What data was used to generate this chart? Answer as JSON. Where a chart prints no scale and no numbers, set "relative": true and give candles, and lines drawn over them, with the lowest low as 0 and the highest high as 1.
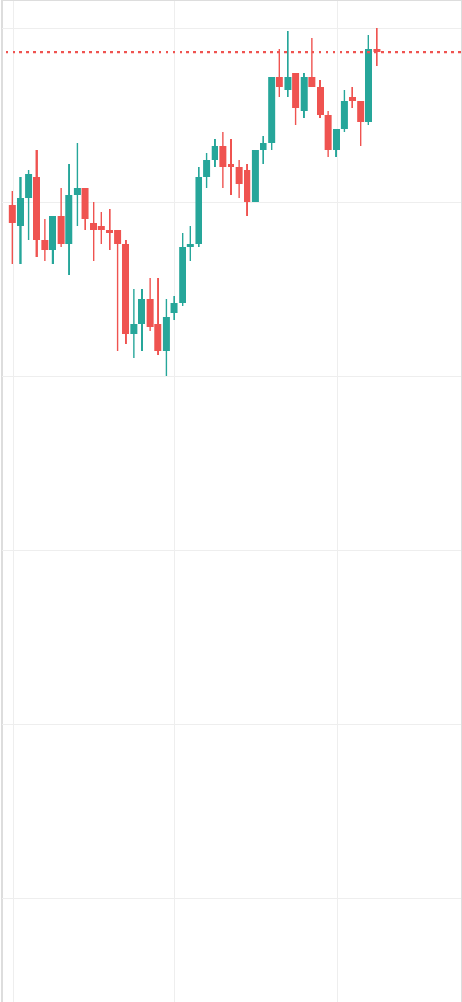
{
  "chart_data": {
    "type": "candlestick",
    "relative": true,
    "grid": true,
    "tick_labels": false,
    "categories": [
      null,
      null,
      null,
      null,
      null,
      null,
      null,
      null,
      null,
      null,
      null,
      null,
      null,
      null,
      null,
      null,
      null,
      null,
      null,
      null,
      null,
      null,
      null,
      null,
      null,
      null,
      null,
      null,
      null,
      null,
      null,
      null,
      null,
      null,
      null,
      null,
      null,
      null,
      null,
      null,
      null,
      null,
      null,
      null,
      null,
      null
    ],
    "ohlc": [
      [
        0.49,
        0.53,
        0.32,
        0.44
      ],
      [
        0.43,
        0.57,
        0.32,
        0.51
      ],
      [
        0.51,
        0.59,
        0.39,
        0.58
      ],
      [
        0.57,
        0.65,
        0.34,
        0.39
      ],
      [
        0.39,
        0.45,
        0.33,
        0.36
      ],
      [
        0.36,
        0.46,
        0.32,
        0.46
      ],
      [
        0.46,
        0.54,
        0.37,
        0.38
      ],
      [
        0.38,
        0.61,
        0.29,
        0.52
      ],
      [
        0.52,
        0.67,
        0.43,
        0.54
      ],
      [
        0.54,
        0.54,
        0.42,
        0.45
      ],
      [
        0.44,
        0.5,
        0.33,
        0.42
      ],
      [
        0.43,
        0.47,
        0.38,
        0.42
      ],
      [
        0.42,
        0.48,
        0.36,
        0.41
      ],
      [
        0.42,
        0.42,
        0.07,
        0.38
      ],
      [
        0.38,
        0.39,
        0.09,
        0.12
      ],
      [
        0.12,
        0.25,
        0.05,
        0.15
      ],
      [
        0.15,
        0.25,
        0.07,
        0.22
      ],
      [
        0.22,
        0.28,
        0.13,
        0.14
      ],
      [
        0.15,
        0.28,
        0.06,
        0.07
      ],
      [
        0.07,
        0.22,
        0.0,
        0.17
      ],
      [
        0.18,
        0.23,
        0.16,
        0.21
      ],
      [
        0.21,
        0.41,
        0.2,
        0.37
      ],
      [
        0.37,
        0.43,
        0.33,
        0.38
      ],
      [
        0.38,
        0.6,
        0.37,
        0.57
      ],
      [
        0.57,
        0.64,
        0.54,
        0.62
      ],
      [
        0.62,
        0.68,
        0.6,
        0.66
      ],
      [
        0.66,
        0.7,
        0.54,
        0.6
      ],
      [
        0.61,
        0.68,
        0.52,
        0.6
      ],
      [
        0.6,
        0.62,
        0.51,
        0.55
      ],
      [
        0.59,
        0.61,
        0.46,
        0.5
      ],
      [
        0.5,
        0.65,
        0.5,
        0.65
      ],
      [
        0.65,
        0.69,
        0.61,
        0.67
      ],
      [
        0.67,
        0.86,
        0.65,
        0.86
      ],
      [
        0.86,
        0.94,
        0.8,
        0.83
      ],
      [
        0.82,
        0.99,
        0.8,
        0.86
      ],
      [
        0.87,
        0.87,
        0.72,
        0.77
      ],
      [
        0.76,
        0.87,
        0.74,
        0.86
      ],
      [
        0.86,
        0.97,
        0.83,
        0.83
      ],
      [
        0.83,
        0.85,
        0.74,
        0.75
      ],
      [
        0.75,
        0.76,
        0.63,
        0.65
      ],
      [
        0.65,
        0.71,
        0.63,
        0.71
      ],
      [
        0.71,
        0.82,
        0.7,
        0.79
      ],
      [
        0.8,
        0.83,
        0.77,
        0.79
      ],
      [
        0.79,
        0.79,
        0.66,
        0.73
      ],
      [
        0.73,
        0.98,
        0.72,
        0.94
      ],
      [
        0.94,
        1.0,
        0.89,
        0.93
      ]
    ],
    "colors": [
      "#ef5350",
      "#26a69a",
      "#26a69a",
      "#ef5350",
      "#ef5350",
      "#26a69a",
      "#ef5350",
      "#26a69a",
      "#26a69a",
      "#ef5350",
      "#ef5350",
      "#ef5350",
      "#ef5350",
      "#ef5350",
      "#ef5350",
      "#26a69a",
      "#26a69a",
      "#ef5350",
      "#ef5350",
      "#26a69a",
      "#26a69a",
      "#26a69a",
      "#26a69a",
      "#26a69a",
      "#26a69a",
      "#26a69a",
      "#ef5350",
      "#ef5350",
      "#ef5350",
      "#ef5350",
      "#26a69a",
      "#26a69a",
      "#26a69a",
      "#ef5350",
      "#26a69a",
      "#ef5350",
      "#26a69a",
      "#ef5350",
      "#ef5350",
      "#ef5350",
      "#26a69a",
      "#26a69a",
      "#ef5350",
      "#ef5350",
      "#26a69a",
      "#ef5350"
    ],
    "ref_lines": [
      {
        "axis": "y",
        "value": 0.93,
        "color": "#ef5350",
        "line_style": "dotted"
      }
    ]
  }
}
